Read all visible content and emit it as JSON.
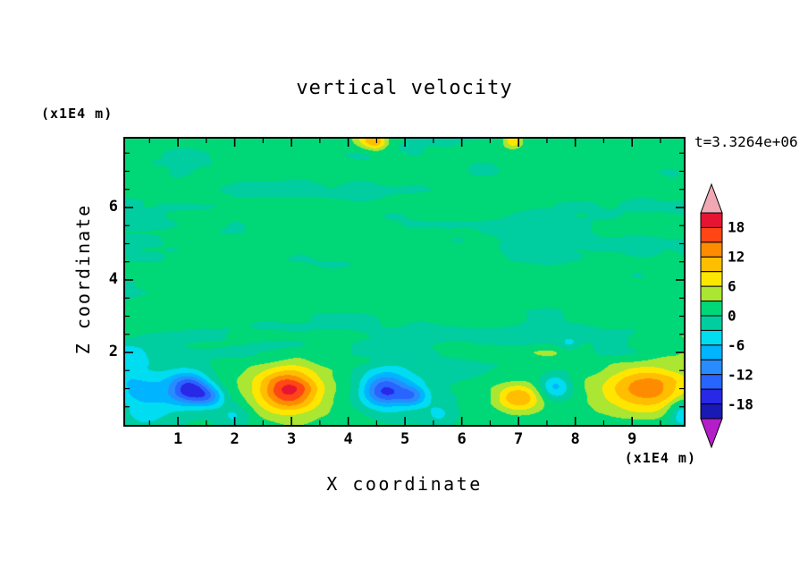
{
  "title": "vertical velocity",
  "time_label": "t=3.3264e+06",
  "x_axis": {
    "label": "X coordinate",
    "unit": "(x1E4 m)",
    "major_ticks": [
      1,
      2,
      3,
      4,
      5,
      6,
      7,
      8,
      9
    ],
    "minor_step": 0.5,
    "range": [
      0.07,
      9.91
    ]
  },
  "z_axis": {
    "label": "Z coordinate",
    "unit": "(x1E4 m)",
    "major_ticks": [
      2,
      4,
      6
    ],
    "minor_step": 0.5,
    "range": [
      0,
      7.9
    ]
  },
  "colorbar": {
    "tick_labels": [
      "18",
      "12",
      "6",
      "0",
      "-6",
      "-12",
      "-18"
    ],
    "tick_values": [
      18,
      12,
      6,
      0,
      -6,
      -12,
      -18
    ],
    "colors": [
      "#1919b4",
      "#2828e6",
      "#2864ff",
      "#288cff",
      "#00b4ff",
      "#00dcf0",
      "#00cda0",
      "#00d878",
      "#aae632",
      "#ffe600",
      "#ffbe00",
      "#ff8c00",
      "#ff4614",
      "#e61432"
    ],
    "under_color": "#b41ec8",
    "over_color": "#f0a8b4"
  },
  "chart_data": {
    "type": "heatmap",
    "title": "vertical velocity",
    "xlabel": "X coordinate",
    "ylabel": "Z coordinate",
    "units": "(x1E4 m)",
    "time": "t=3.3264e+06",
    "x_range": [
      0.07,
      9.91
    ],
    "z_range": [
      0,
      7.9
    ],
    "levels": [
      -21,
      -18,
      -15,
      -12,
      -9,
      -6,
      -3,
      0,
      3,
      6,
      9,
      12,
      15,
      18,
      21
    ],
    "features": [
      {
        "x": 0.45,
        "z": 0.8,
        "amplitude": -7,
        "sx": 0.5,
        "sz": 0.8
      },
      {
        "x": 0.0,
        "z": 1.6,
        "amplitude": -5,
        "sx": 0.35,
        "sz": 0.6
      },
      {
        "x": 1.2,
        "z": 1.0,
        "amplitude": -17,
        "sx": 0.36,
        "sz": 0.42
      },
      {
        "x": 1.55,
        "z": 0.78,
        "amplitude": -9,
        "sx": 0.28,
        "sz": 0.3
      },
      {
        "x": 2.0,
        "z": 0.25,
        "amplitude": -5,
        "sx": 0.3,
        "sz": 0.4
      },
      {
        "x": 2.95,
        "z": 0.95,
        "amplitude": 14,
        "sx": 0.5,
        "sz": 0.55
      },
      {
        "x": 2.95,
        "z": 1.0,
        "amplitude": 4,
        "sx": 1.05,
        "sz": 0.95
      },
      {
        "x": 4.65,
        "z": 0.95,
        "amplitude": -14,
        "sx": 0.4,
        "sz": 0.45
      },
      {
        "x": 5.15,
        "z": 0.8,
        "amplitude": -8,
        "sx": 0.26,
        "sz": 0.3
      },
      {
        "x": 4.85,
        "z": 0.9,
        "amplitude": -3,
        "sx": 0.85,
        "sz": 0.7
      },
      {
        "x": 5.6,
        "z": 0.3,
        "amplitude": -4,
        "sx": 0.25,
        "sz": 0.3
      },
      {
        "x": 7.0,
        "z": 0.75,
        "amplitude": 11,
        "sx": 0.4,
        "sz": 0.38
      },
      {
        "x": 7.65,
        "z": 1.05,
        "amplitude": -8,
        "sx": 0.28,
        "sz": 0.35
      },
      {
        "x": 7.9,
        "z": 2.25,
        "amplitude": -4.5,
        "sx": 0.18,
        "sz": 0.2
      },
      {
        "x": 9.25,
        "z": 1.0,
        "amplitude": 10,
        "sx": 0.72,
        "sz": 0.6
      },
      {
        "x": 9.3,
        "z": 1.1,
        "amplitude": 3.5,
        "sx": 1.15,
        "sz": 0.95
      },
      {
        "x": 9.88,
        "z": 0.35,
        "amplitude": -8,
        "sx": 0.25,
        "sz": 0.4
      },
      {
        "x": 4.5,
        "z": 7.8,
        "amplitude": 9,
        "sx": 0.2,
        "sz": 0.22
      },
      {
        "x": 4.28,
        "z": 7.9,
        "amplitude": 6,
        "sx": 0.24,
        "sz": 0.25
      },
      {
        "x": 6.9,
        "z": 7.85,
        "amplitude": 8,
        "sx": 0.16,
        "sz": 0.2
      }
    ],
    "background": {
      "mean": 0.5,
      "noise_base": 1.2,
      "noise_bands": [
        {
          "z": 5.6,
          "width": 1.0,
          "amp": 1.5
        },
        {
          "z": 2.35,
          "width": 0.8,
          "amp": 2.6
        },
        {
          "z": 7.35,
          "width": 0.5,
          "amp": 1.1
        }
      ],
      "noise_scale_x": 0.8,
      "noise_scale_z": 2.0
    }
  }
}
